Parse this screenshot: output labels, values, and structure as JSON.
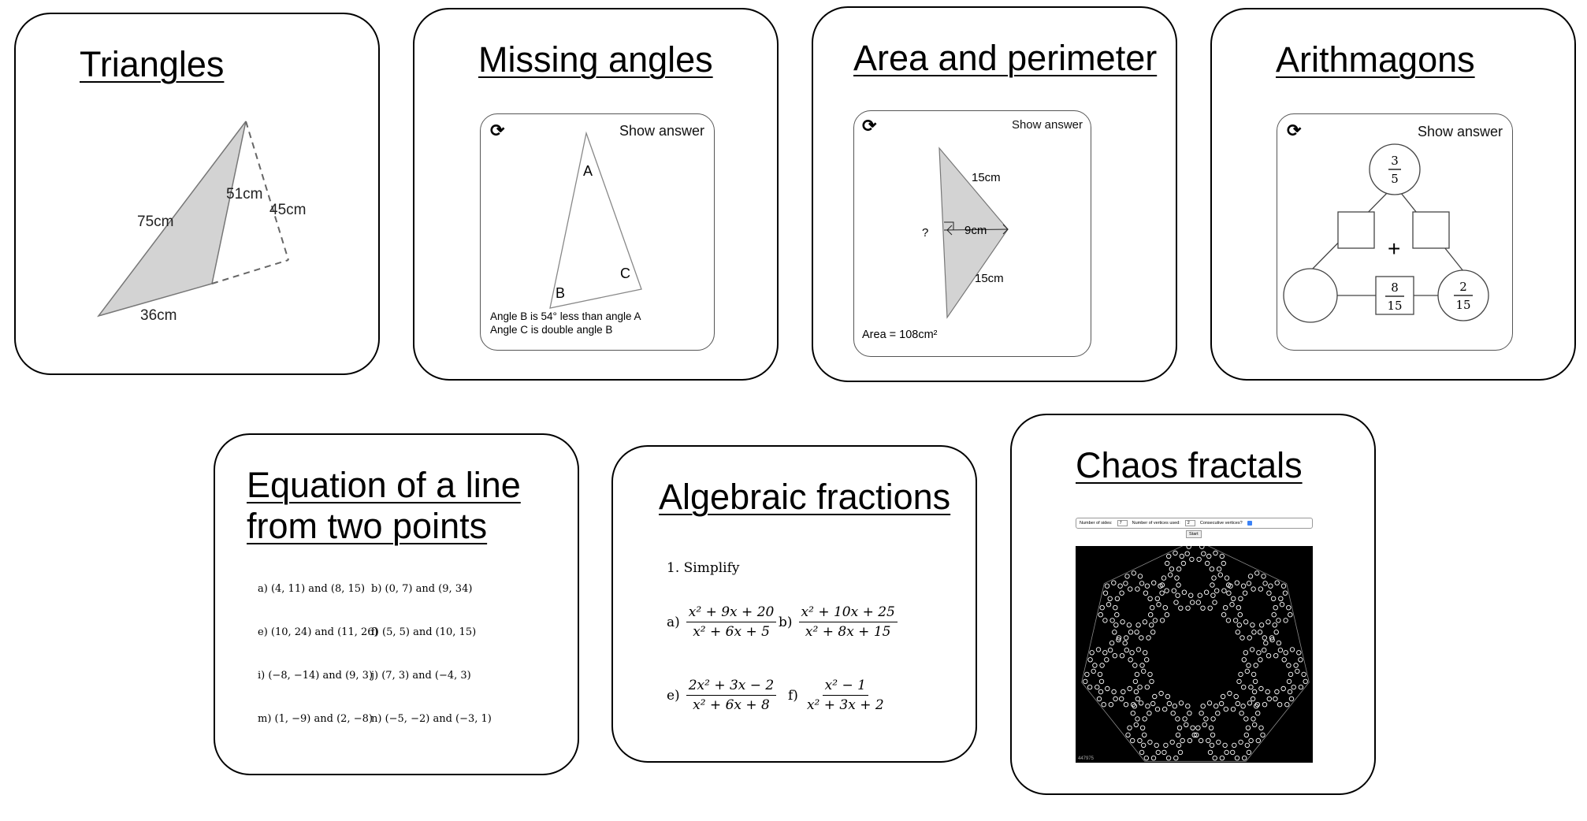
{
  "cards": {
    "triangles": {
      "title": "Triangles",
      "labels": {
        "a": "75cm",
        "b": "51cm",
        "c": "45cm",
        "d": "36cm"
      }
    },
    "missing_angles": {
      "title": "Missing angles",
      "show_answer": "Show answer",
      "vertex_a": "A",
      "vertex_b": "B",
      "vertex_c": "C",
      "line1": "Angle B is 54° less than angle A",
      "line2": "Angle C is double angle B"
    },
    "area_perimeter": {
      "title": "Area and perimeter",
      "show_answer": "Show answer",
      "side_top": "15cm",
      "side_bottom": "15cm",
      "height": "9cm",
      "unknown": "?",
      "area": "Area = 108cm²"
    },
    "arithmagons": {
      "title": "Arithmagons",
      "show_answer": "Show answer",
      "plus": "+",
      "top": {
        "num": "3",
        "den": "5"
      },
      "bottom": {
        "num": "8",
        "den": "15"
      },
      "right": {
        "num": "2",
        "den": "15"
      }
    },
    "equation_line": {
      "title_line1": "Equation of a line",
      "title_line2": "from two points",
      "items": [
        "a) (4, 11) and (8, 15)",
        "b) (0, 7) and (9, 34)",
        "e) (10, 24) and (11, 26)",
        "f) (5, 5) and (10, 15)",
        "i) (−8, −14) and (9, 3)",
        "j) (7, 3) and (−4, 3)",
        "m) (1, −9) and (2, −8)",
        "n) (−5, −2) and (−3, 1)"
      ]
    },
    "algebraic_fractions": {
      "title": "Algebraic fractions",
      "heading": "1. Simplify",
      "items": [
        {
          "label": "a)",
          "num": "x² + 9x + 20",
          "den": "x² + 6x + 5"
        },
        {
          "label": "b)",
          "num": "x² + 10x + 25",
          "den": "x² + 8x + 15"
        },
        {
          "label": "e)",
          "num": "2x² + 3x − 2",
          "den": "x² + 6x + 8"
        },
        {
          "label": "f)",
          "num": "x² − 1",
          "den": "x² + 3x + 2"
        }
      ]
    },
    "chaos_fractals": {
      "title": "Chaos fractals",
      "sides_label": "Number of sides:",
      "sides_value": "7",
      "vertices_label": "Number of vertices used:",
      "vertices_value": "2",
      "consecutive_label": "Consecutive vertices?",
      "start_label": "Start",
      "counter": "447975"
    }
  },
  "colors": {
    "border": "#000000",
    "shade": "#d3d3d3",
    "fractal_bg": "#000000",
    "fractal_fg": "#ffffff",
    "checkbox": "#3b82f6"
  }
}
